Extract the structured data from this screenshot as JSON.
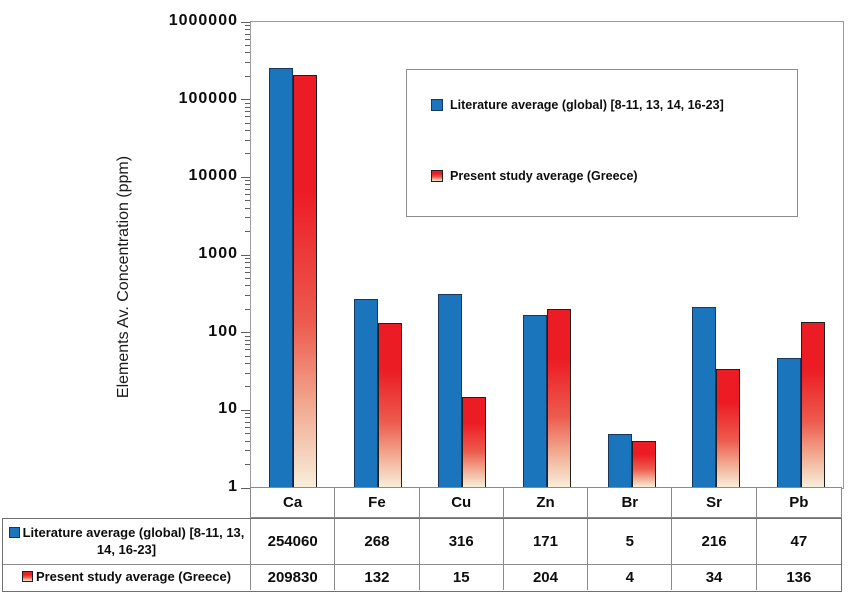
{
  "chart_data": {
    "type": "bar",
    "yscale": "log",
    "title": "",
    "xlabel": "",
    "ylabel": "Elements Av. Concentration (ppm)",
    "categories": [
      "Ca",
      "Fe",
      "Cu",
      "Zn",
      "Br",
      "Sr",
      "Pb"
    ],
    "series": [
      {
        "name": "Literature average (global) [8-11, 13, 14, 16-23]",
        "values": [
          254060,
          268,
          316,
          171,
          5,
          216,
          47
        ],
        "fill": "solid",
        "color": "#1B75BC",
        "border_color": "#17375D"
      },
      {
        "name": "Present study average (Greece)",
        "values": [
          209830,
          132,
          15,
          204,
          4,
          34,
          136
        ],
        "fill": "gradient",
        "gradient_stops": [
          "#EC1C24",
          "#EC1C24",
          "#EC5B4E",
          "#F2A88F",
          "#F8EEDA"
        ],
        "gradient_positions": [
          0,
          28,
          60,
          80,
          100
        ],
        "color": "#EC1C24",
        "color_bottom": "#F8EEDA",
        "border_color": "#1F1F1F"
      }
    ],
    "ylim": [
      1,
      1000000
    ],
    "ytick_labels": [
      "1000000",
      "100000",
      "10000",
      "1000",
      "100",
      "10",
      "1"
    ],
    "grid": false,
    "legend_position": "inside-top-right",
    "data_table_shown": true
  }
}
